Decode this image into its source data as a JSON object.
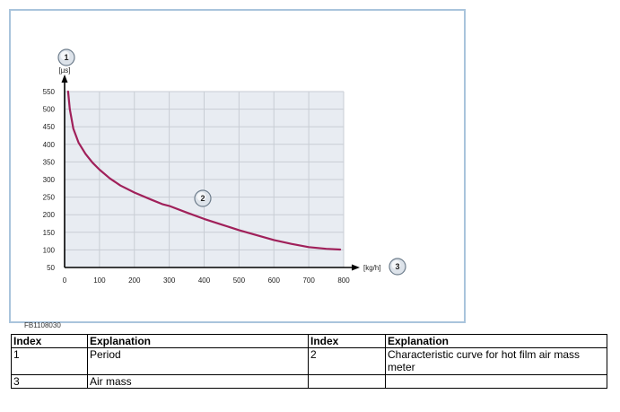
{
  "figure": {
    "code": "FB1108030",
    "callouts": [
      "1",
      "2",
      "3"
    ]
  },
  "chart_data": {
    "type": "line",
    "title": "",
    "ylabel": "[µs]",
    "xlabel": "[kg/h]",
    "xlim": [
      0,
      800
    ],
    "ylim": [
      50,
      550
    ],
    "x_ticks": [
      "0",
      "100",
      "200",
      "300",
      "400",
      "500",
      "600",
      "700",
      "800"
    ],
    "y_ticks": [
      "50",
      "100",
      "150",
      "200",
      "250",
      "300",
      "350",
      "400",
      "450",
      "500",
      "550"
    ],
    "grid": true,
    "line_color": "#a0205a",
    "grid_color": "#c8cdd4",
    "plot_bg": "#e8ecf2",
    "series": [
      {
        "x": [
          10,
          15,
          25,
          40,
          60,
          80,
          100,
          130,
          160,
          200,
          250,
          280,
          300,
          350,
          400,
          450,
          500,
          550,
          600,
          650,
          700,
          750,
          790
        ],
        "y": [
          550,
          500,
          445,
          405,
          373,
          348,
          328,
          303,
          283,
          263,
          242,
          230,
          225,
          206,
          188,
          172,
          156,
          142,
          128,
          117,
          108,
          103,
          101
        ]
      }
    ]
  },
  "table": {
    "headers": [
      "Index",
      "Explanation",
      "Index",
      "Explanation"
    ],
    "rows": [
      [
        "1",
        "Period",
        "2",
        "Characteristic curve for hot film air mass meter"
      ],
      [
        "3",
        "Air mass",
        "",
        ""
      ]
    ]
  }
}
